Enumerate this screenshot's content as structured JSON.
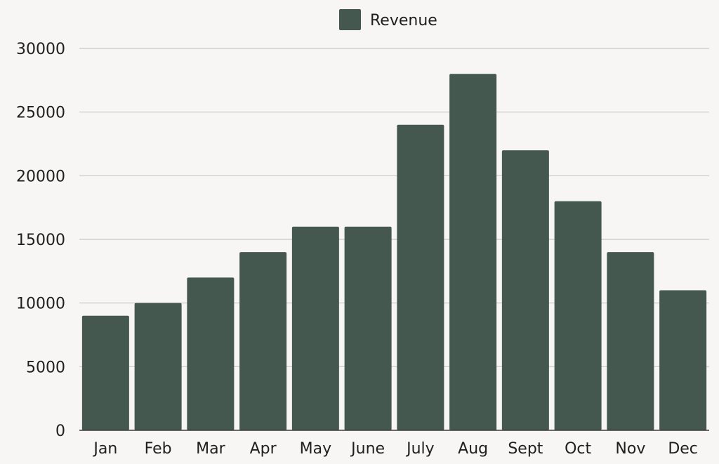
{
  "chart_data": {
    "type": "bar",
    "categories": [
      "Jan",
      "Feb",
      "Mar",
      "Apr",
      "May",
      "June",
      "July",
      "Aug",
      "Sept",
      "Oct",
      "Nov",
      "Dec"
    ],
    "series": [
      {
        "name": "Revenue",
        "values": [
          9000,
          10000,
          12000,
          14000,
          16000,
          16000,
          24000,
          28000,
          22000,
          18000,
          14000,
          11000
        ]
      }
    ],
    "title": "",
    "xlabel": "",
    "ylabel": "",
    "ylim": [
      0,
      30000
    ],
    "yticks": [
      0,
      5000,
      10000,
      15000,
      20000,
      25000,
      30000
    ],
    "grid": true,
    "legend": "top-center",
    "colors": {
      "bar": "#445850",
      "grid": "#c8c8c8",
      "axis": "#3a3a3a",
      "background": "#f8f5f5"
    }
  }
}
